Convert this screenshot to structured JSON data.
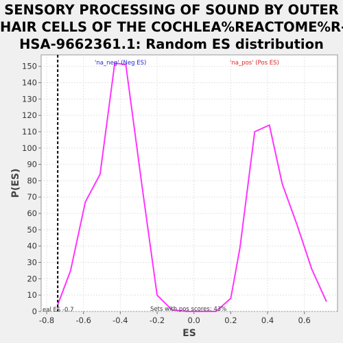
{
  "chart_data": {
    "type": "line",
    "title_lines": [
      "SENSORY PROCESSING OF SOUND BY OUTER",
      "HAIR CELLS OF THE COCHLEA%REACTOME%R-",
      "HSA-9662361.1: Random ES distribution"
    ],
    "xlabel": "ES",
    "ylabel": "P(ES)",
    "xlim": [
      -0.83,
      0.78
    ],
    "ylim": [
      0,
      157
    ],
    "xticks": [
      -0.8,
      -0.6,
      -0.4,
      -0.2,
      0.0,
      0.2,
      0.4,
      0.6
    ],
    "xtick_labels": [
      "-0.8",
      "-0.6",
      "-0.4",
      "-0.2",
      "0.0",
      "0.2",
      "0.4",
      "0.6"
    ],
    "yticks": [
      0,
      10,
      20,
      30,
      40,
      50,
      60,
      70,
      80,
      90,
      100,
      110,
      120,
      130,
      140,
      150
    ],
    "grid": true,
    "series": [
      {
        "color": "#ff33ff",
        "x": [
          -0.74,
          -0.67,
          -0.59,
          -0.51,
          -0.43,
          -0.37,
          -0.28,
          -0.2,
          -0.12,
          -0.04,
          0.04,
          0.12,
          0.2,
          0.25,
          0.33,
          0.41,
          0.48,
          0.56,
          0.64,
          0.72
        ],
        "y": [
          4,
          25,
          67,
          84,
          152,
          151,
          75,
          10,
          1,
          0,
          0,
          0,
          8,
          39,
          110,
          114,
          78,
          53,
          26,
          6
        ]
      }
    ],
    "real_es_line": {
      "x": -0.74,
      "color": "#000000"
    },
    "annotations": {
      "neg_label": "'na_neg' (Neg ES)",
      "neg_color": "#2222cc",
      "pos_label": "'na_pos' (Pos ES)",
      "pos_color": "#dd2222",
      "real_es_text": "eal ES -0.7",
      "pos_scores_text": "Sets with pos scores: 43%"
    }
  }
}
